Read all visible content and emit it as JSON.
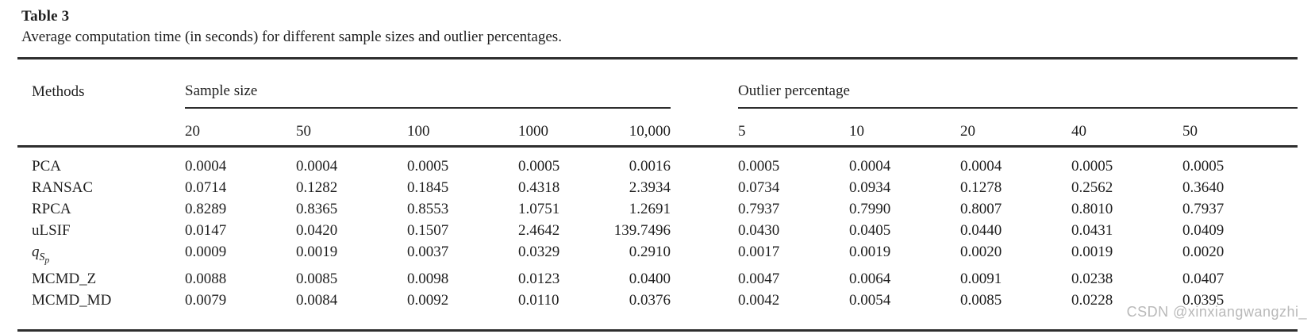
{
  "page": {
    "title": "Table 3",
    "caption": "Average computation time (in seconds) for different sample sizes and outlier percentages."
  },
  "table": {
    "methods_header": "Methods",
    "groups": [
      {
        "label": "Sample size",
        "columns": [
          "20",
          "50",
          "100",
          "1000",
          "10,000"
        ]
      },
      {
        "label": "Outlier percentage",
        "columns": [
          "5",
          "10",
          "20",
          "40",
          "50"
        ]
      }
    ],
    "rows": [
      {
        "method": {
          "text": "PCA"
        },
        "sample_size": [
          "0.0004",
          "0.0004",
          "0.0005",
          "0.0005",
          "0.0016"
        ],
        "outlier_percentage": [
          "0.0005",
          "0.0004",
          "0.0004",
          "0.0005",
          "0.0005"
        ]
      },
      {
        "method": {
          "text": "RANSAC"
        },
        "sample_size": [
          "0.0714",
          "0.1282",
          "0.1845",
          "0.4318",
          "2.3934"
        ],
        "outlier_percentage": [
          "0.0734",
          "0.0934",
          "0.1278",
          "0.2562",
          "0.3640"
        ]
      },
      {
        "method": {
          "text": "RPCA"
        },
        "sample_size": [
          "0.8289",
          "0.8365",
          "0.8553",
          "1.0751",
          "1.2691"
        ],
        "outlier_percentage": [
          "0.7937",
          "0.7990",
          "0.8007",
          "0.8010",
          "0.7937"
        ]
      },
      {
        "method": {
          "text": "uLSIF"
        },
        "sample_size": [
          "0.0147",
          "0.0420",
          "0.1507",
          "2.4642",
          "139.7496"
        ],
        "outlier_percentage": [
          "0.0430",
          "0.0405",
          "0.0440",
          "0.0431",
          "0.0409"
        ]
      },
      {
        "method": {
          "text": "q",
          "italic": true,
          "sub": {
            "text": "S",
            "italic": true,
            "sub": {
              "text": "p",
              "italic": true
            }
          }
        },
        "sample_size": [
          "0.0009",
          "0.0019",
          "0.0037",
          "0.0329",
          "0.2910"
        ],
        "outlier_percentage": [
          "0.0017",
          "0.0019",
          "0.0020",
          "0.0019",
          "0.0020"
        ]
      },
      {
        "method": {
          "text": "MCMD_Z"
        },
        "gap_before": true,
        "sample_size": [
          "0.0088",
          "0.0085",
          "0.0098",
          "0.0123",
          "0.0400"
        ],
        "outlier_percentage": [
          "0.0047",
          "0.0064",
          "0.0091",
          "0.0238",
          "0.0407"
        ]
      },
      {
        "method": {
          "text": "MCMD_MD"
        },
        "sample_size": [
          "0.0079",
          "0.0084",
          "0.0092",
          "0.0110",
          "0.0376"
        ],
        "outlier_percentage": [
          "0.0042",
          "0.0054",
          "0.0085",
          "0.0228",
          "0.0395"
        ]
      }
    ]
  },
  "watermark": "CSDN @xinxiangwangzhi_",
  "colors": {
    "text": "#1f1f1f",
    "rule": "#2e2e2e",
    "watermark": "#b9b9b9",
    "background": "#ffffff"
  }
}
